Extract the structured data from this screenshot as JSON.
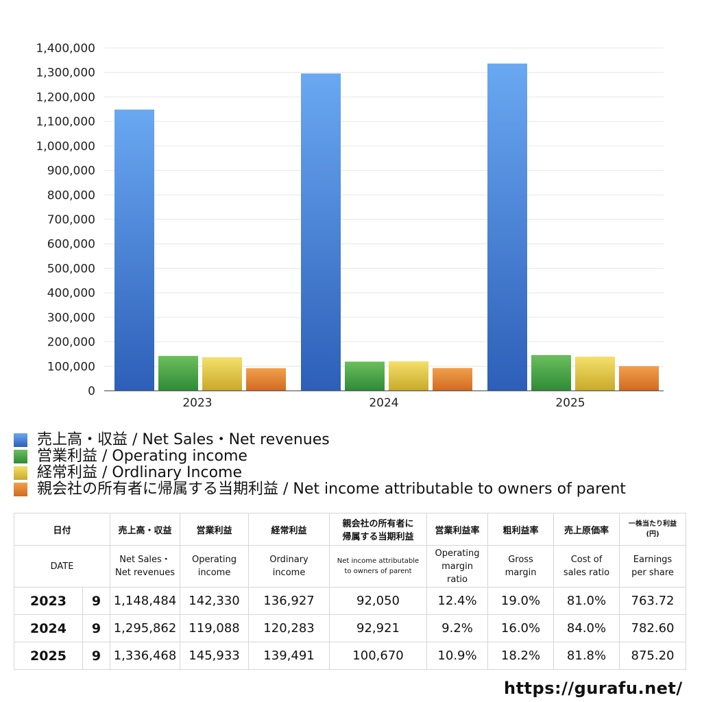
{
  "chart_data": {
    "type": "bar",
    "categories": [
      "2023",
      "2024",
      "2025"
    ],
    "series": [
      {
        "name": "売上高・収益 / Net Sales・Net revenues",
        "values": [
          1148484,
          1295862,
          1336468
        ],
        "color_top": "#6aa8f2",
        "color_bottom": "#2d5fb8"
      },
      {
        "name": "営業利益 / Operating income",
        "values": [
          142330,
          119088,
          145933
        ],
        "color_top": "#6bbf5c",
        "color_bottom": "#2f8a37"
      },
      {
        "name": "経常利益 / Ordlinary Income",
        "values": [
          136927,
          120283,
          139491
        ],
        "color_top": "#f4e06a",
        "color_bottom": "#c9a92a"
      },
      {
        "name": "親会社の所有者に帰属する当期利益 / Net income attributable to owners of parent",
        "values": [
          92050,
          92921,
          100670
        ],
        "color_top": "#f0a04a",
        "color_bottom": "#d26a22"
      }
    ],
    "ylim": [
      0,
      1400000
    ],
    "yticks": [
      "0",
      "100,000",
      "200,000",
      "300,000",
      "400,000",
      "500,000",
      "600,000",
      "700,000",
      "800,000",
      "900,000",
      "1,000,000",
      "1,100,000",
      "1,200,000",
      "1,300,000",
      "1,400,000"
    ],
    "grid": true,
    "legend_position": "bottom"
  },
  "table": {
    "header_jp": [
      "日付",
      "売上高・収益",
      "営業利益",
      "経常利益",
      "親会社の所有者に",
      "帰属する当期利益",
      "営業利益率",
      "粗利益率",
      "売上原価率",
      "一株当たり利益",
      "(円)"
    ],
    "header_en": [
      "DATE",
      "Net Sales・",
      "Net revenues",
      "Operating",
      "income",
      "Ordinary",
      "income",
      "Net income attributable",
      "to owners of parent",
      "Operating",
      "margin",
      "ratio",
      "Gross",
      "margin",
      "Cost of",
      "sales ratio",
      "Earnings",
      "per share"
    ],
    "rows": [
      {
        "year": "2023",
        "month": "9",
        "sales": "1,148,484",
        "op": "142,330",
        "ord": "136,927",
        "net": "92,050",
        "opm": "12.4%",
        "gm": "19.0%",
        "cos": "81.0%",
        "eps": "763.72"
      },
      {
        "year": "2024",
        "month": "9",
        "sales": "1,295,862",
        "op": "119,088",
        "ord": "120,283",
        "net": "92,921",
        "opm": "9.2%",
        "gm": "16.0%",
        "cos": "84.0%",
        "eps": "782.60"
      },
      {
        "year": "2025",
        "month": "9",
        "sales": "1,336,468",
        "op": "145,933",
        "ord": "139,491",
        "net": "100,670",
        "opm": "10.9%",
        "gm": "18.2%",
        "cos": "81.8%",
        "eps": "875.20"
      }
    ]
  },
  "site_url": "https://gurafu.net/"
}
